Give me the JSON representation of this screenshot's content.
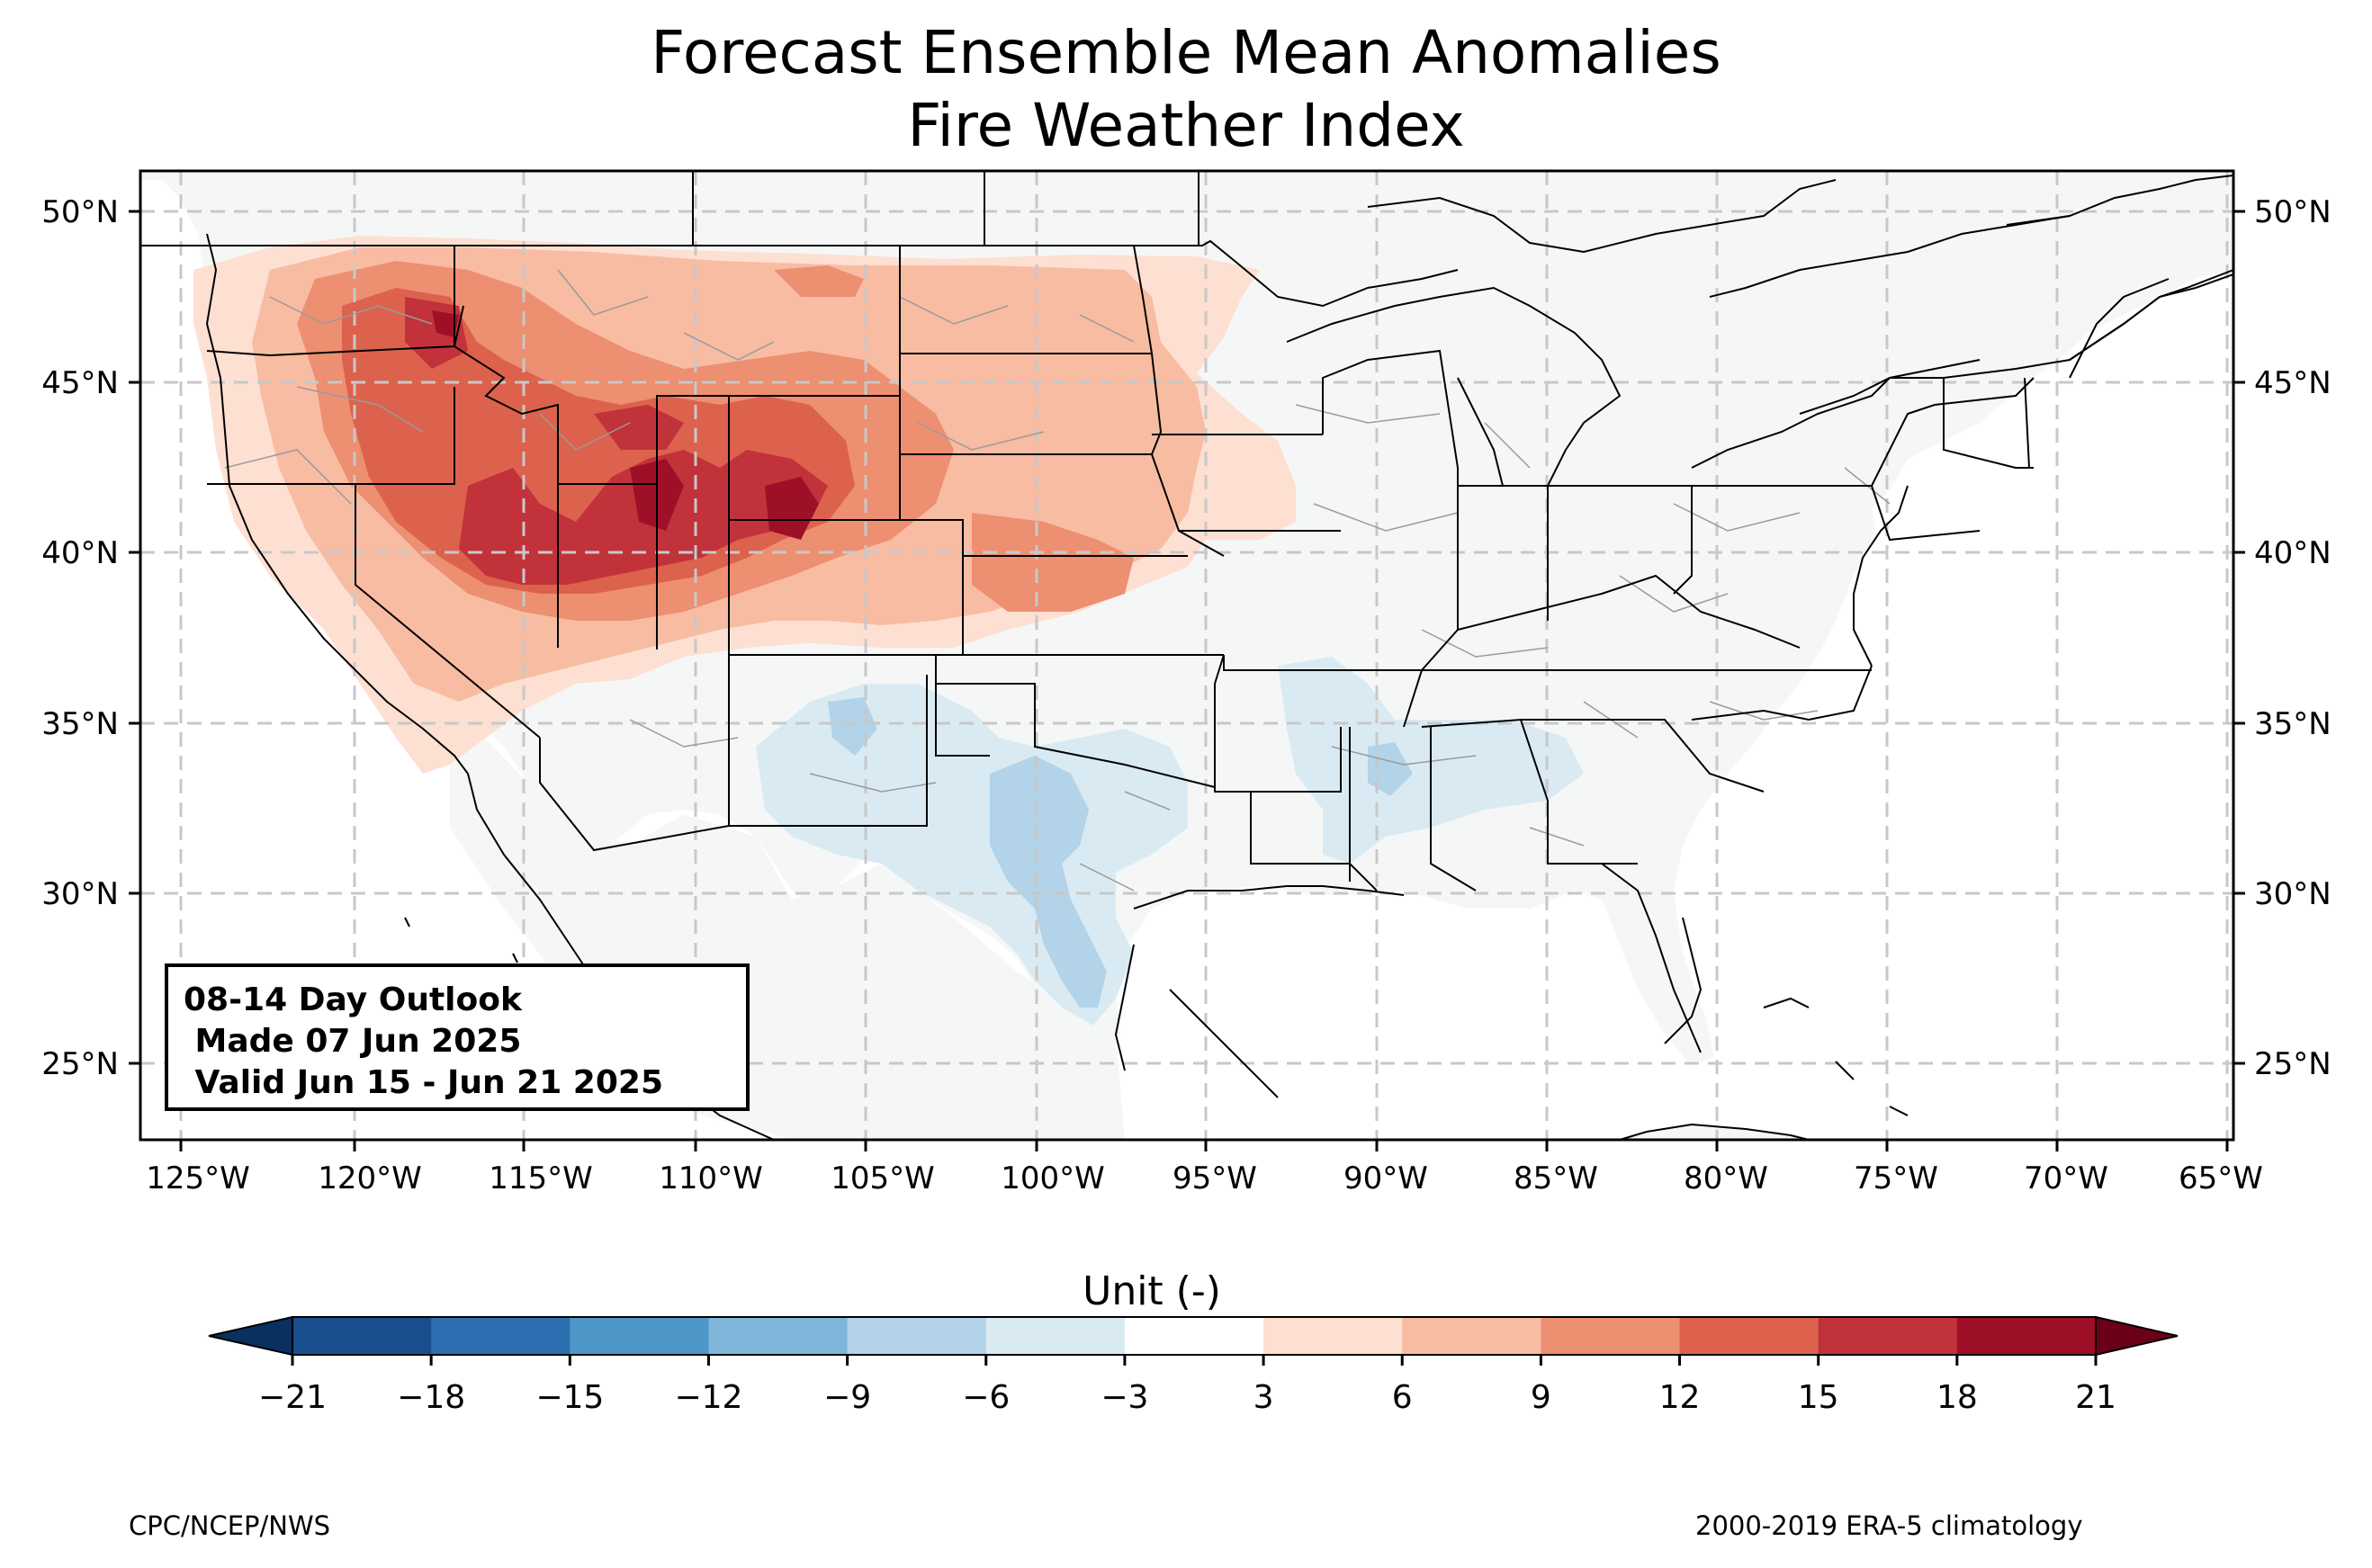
{
  "title": "Forecast Ensemble Mean Anomalies",
  "subtitle": "Fire Weather Index",
  "outlook": {
    "line1": "08-14 Day Outlook",
    "line2": " Made 07 Jun 2025",
    "line3": " Valid Jun 15 - Jun 21 2025"
  },
  "map_extent": {
    "lon": [
      -126.2,
      -64.8
    ],
    "lat": [
      22.8,
      51.2
    ]
  },
  "lon_ticks": [
    "125°W",
    "120°W",
    "115°W",
    "110°W",
    "105°W",
    "100°W",
    "95°W",
    "90°W",
    "85°W",
    "80°W",
    "75°W",
    "70°W",
    "65°W"
  ],
  "lat_ticks_left": [
    "50°N",
    "45°N",
    "40°N",
    "35°N",
    "30°N",
    "25°N"
  ],
  "lat_ticks_right": [
    "50°N",
    "45°N",
    "40°N",
    "35°N",
    "30°N",
    "25°N"
  ],
  "colorbar": {
    "label": "Unit (-)",
    "ticks": [
      "−21",
      "−18",
      "−15",
      "−12",
      "−9",
      "−6",
      "−3",
      "3",
      "6",
      "9",
      "12",
      "15",
      "18",
      "21"
    ],
    "colors": [
      "#1a4f8f",
      "#2d70b2",
      "#4d97c8",
      "#7fb6d9",
      "#b2d3e8",
      "#daeaf3",
      "#ffffff",
      "#fde0d2",
      "#f8bca3",
      "#ed8f71",
      "#dc624d",
      "#c2323a",
      "#9e1028"
    ],
    "under_color": "#0a3060",
    "over_color": "#6b0018"
  },
  "footer": {
    "left": "CPC/NCEP/NWS",
    "right": "2000-2019 ERA-5 climatology"
  }
}
